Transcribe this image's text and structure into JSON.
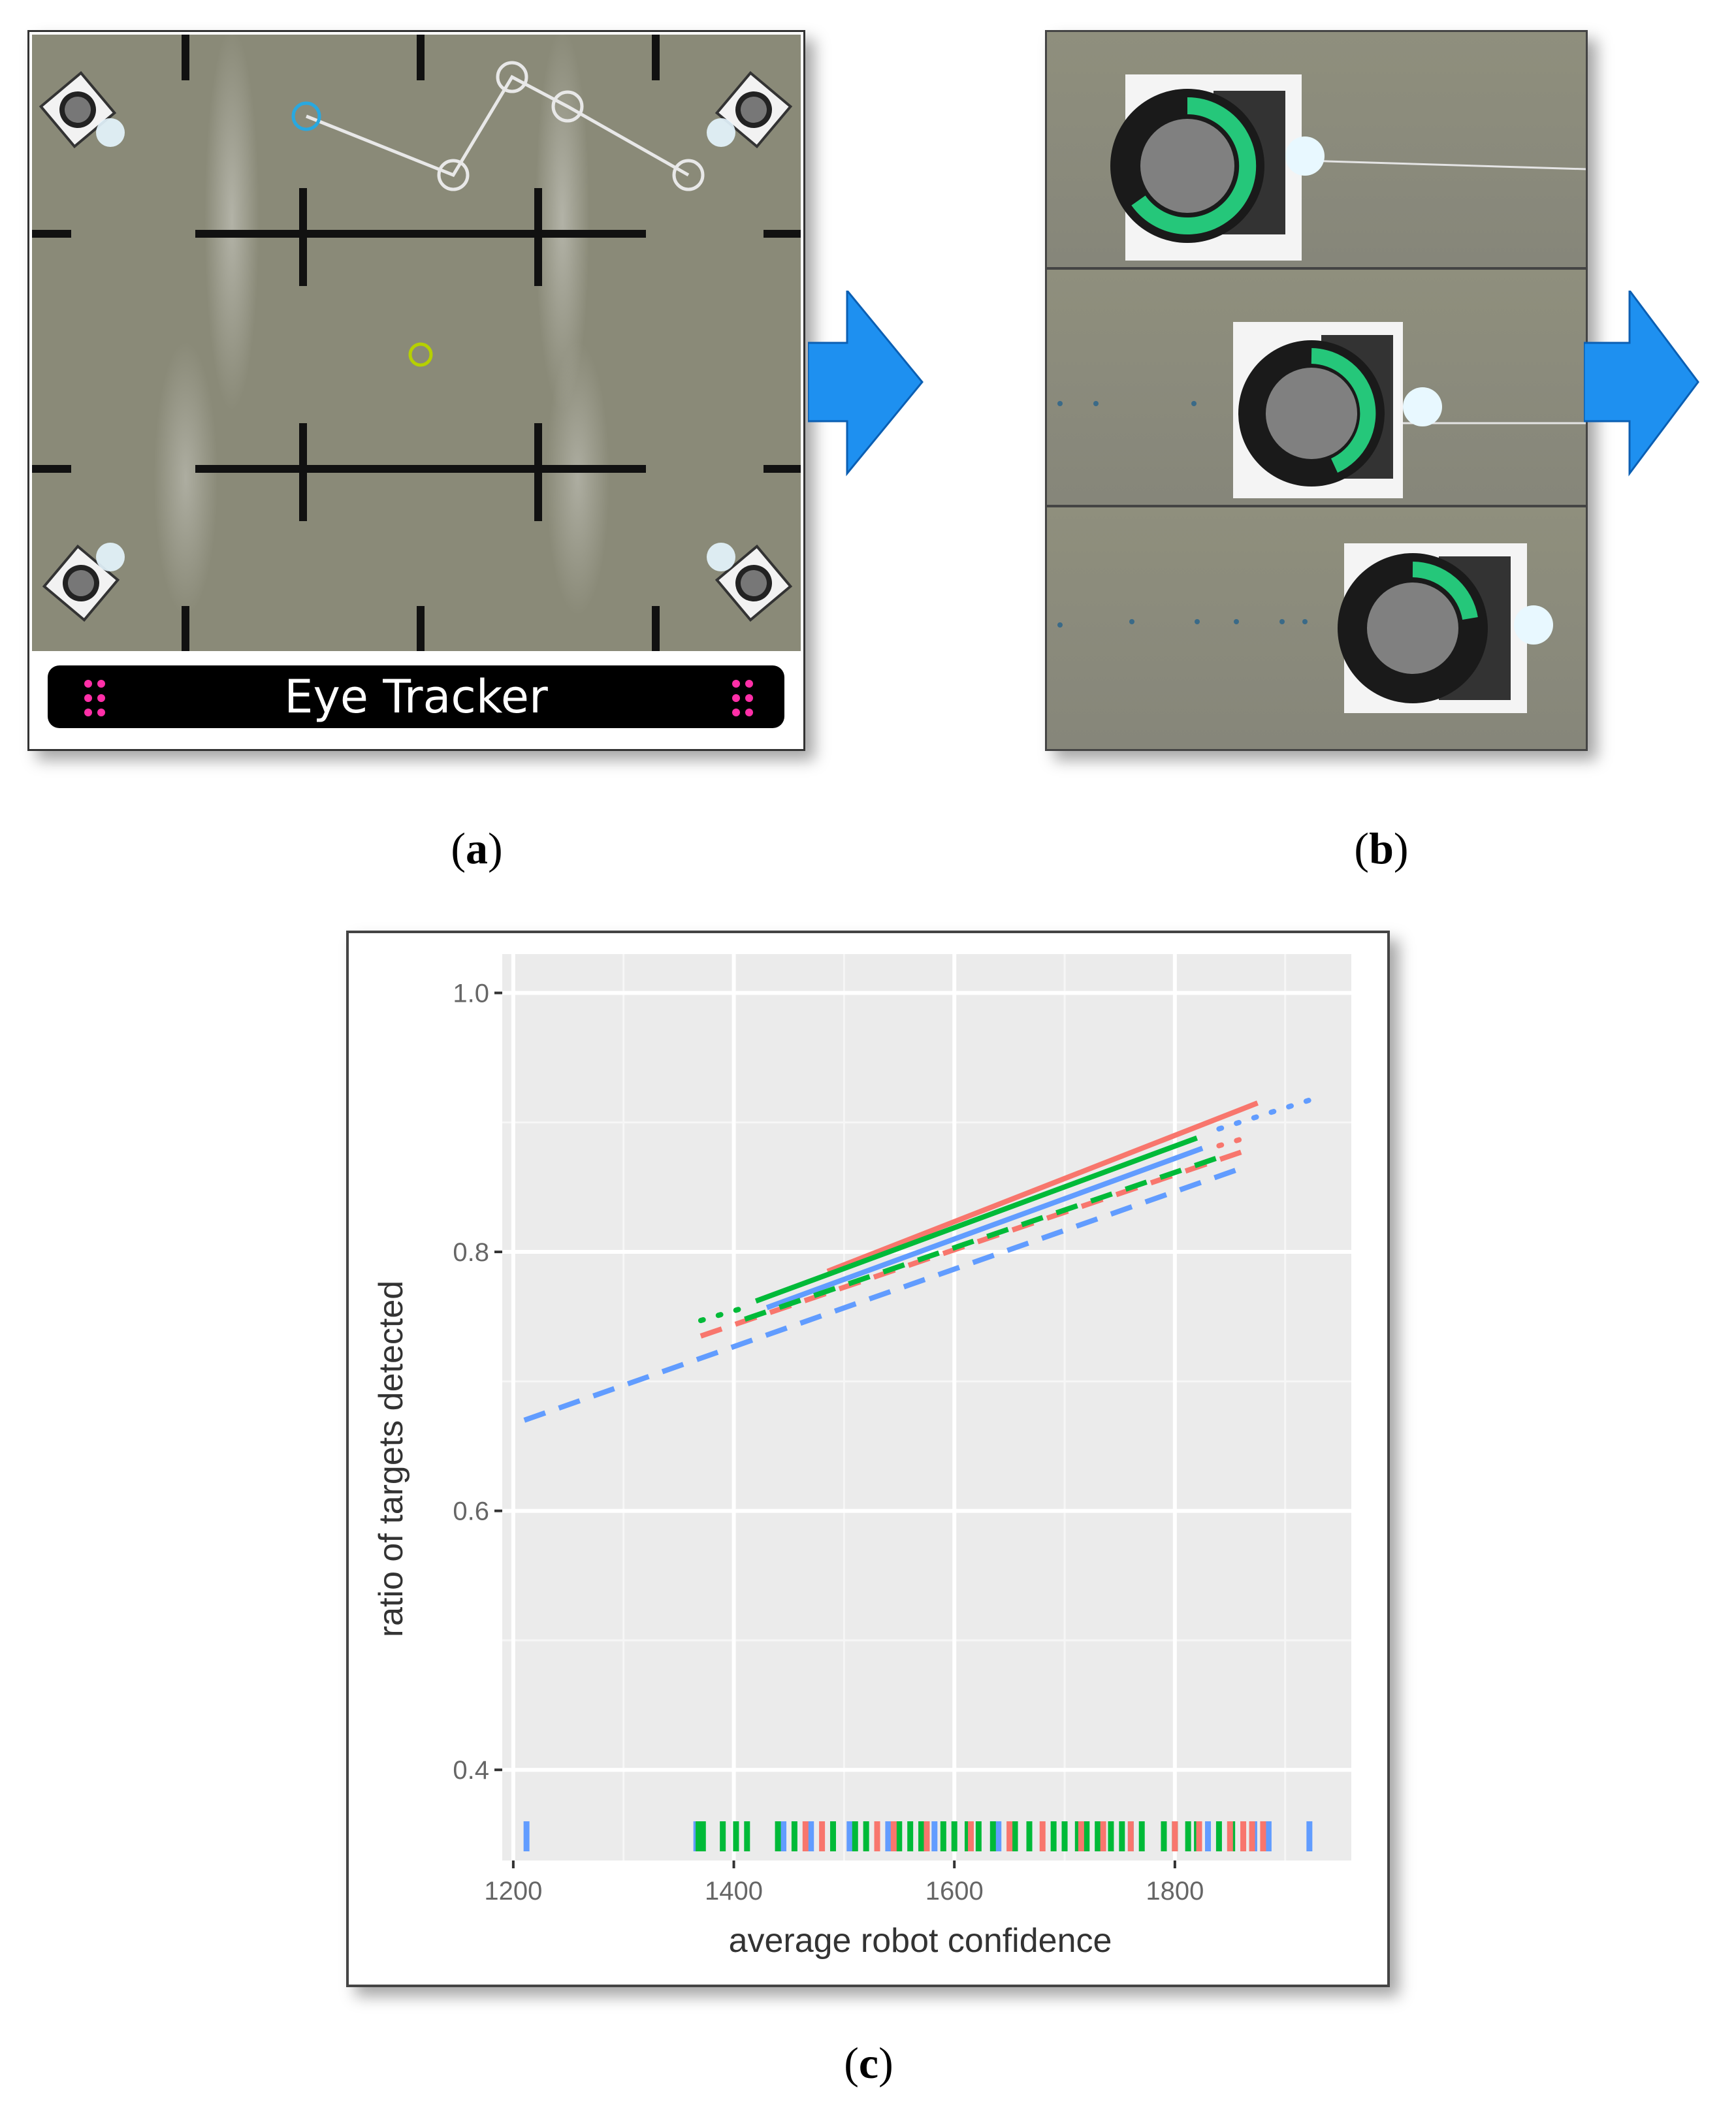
{
  "panel_a": {
    "caption_letter": "a",
    "tracker_label": "Eye Tracker"
  },
  "panel_b": {
    "caption_letter": "b"
  },
  "panel_c": {
    "caption_letter": "c"
  },
  "colors": {
    "arrow": "#1e90f0",
    "red": "#f8766d",
    "green": "#00ba38",
    "blue": "#619cff",
    "panel_bg": "#ebebeb",
    "eye_tracker_bg": "#000000",
    "eye_tracker_dots": "#ff2fa8"
  },
  "chart_data": {
    "type": "line",
    "title": "",
    "xlabel": "average robot confidence",
    "ylabel": "ratio of targets detected",
    "xlim": [
      1190,
      1960
    ],
    "ylim": [
      0.33,
      1.03
    ],
    "x_ticks": [
      1200,
      1400,
      1600,
      1800
    ],
    "y_ticks": [
      0.4,
      0.6,
      0.8,
      1.0
    ],
    "y_tick_labels": [
      "0.4",
      "0.6",
      "0.8",
      "1.0"
    ],
    "grid": true,
    "legend": "none",
    "series": [
      {
        "color": "#f8766d",
        "style": "solid",
        "x": [
          1485,
          1875
        ],
        "y": [
          0.785,
          0.915
        ]
      },
      {
        "color": "#00ba38",
        "style": "solid",
        "x": [
          1420,
          1820
        ],
        "y": [
          0.762,
          0.888
        ]
      },
      {
        "color": "#619cff",
        "style": "solid",
        "x": [
          1430,
          1825
        ],
        "y": [
          0.757,
          0.88
        ]
      },
      {
        "color": "#f8766d",
        "style": "dashed",
        "x": [
          1370,
          1860
        ],
        "y": [
          0.735,
          0.877
        ]
      },
      {
        "color": "#00ba38",
        "style": "dashed",
        "x": [
          1410,
          1840
        ],
        "y": [
          0.748,
          0.873
        ]
      },
      {
        "color": "#619cff",
        "style": "dashed",
        "x": [
          1210,
          1865
        ],
        "y": [
          0.67,
          0.866
        ]
      },
      {
        "color": "#00ba38",
        "style": "dotted",
        "x": [
          1370,
          1410
        ],
        "y": [
          0.747,
          0.757
        ]
      },
      {
        "color": "#619cff",
        "style": "dotted",
        "x": [
          1840,
          1925
        ],
        "y": [
          0.895,
          0.918
        ]
      },
      {
        "color": "#f8766d",
        "style": "dotted",
        "x": [
          1840,
          1860
        ],
        "y": [
          0.882,
          0.887
        ]
      }
    ],
    "rug": [
      {
        "color": "#619cff",
        "x": [
          1212,
          1366,
          1445,
          1470,
          1505,
          1540,
          1582,
          1640,
          1700,
          1760,
          1790,
          1830,
          1872,
          1885,
          1922
        ]
      },
      {
        "color": "#00ba38",
        "x": [
          1368,
          1372,
          1390,
          1402,
          1412,
          1440,
          1455,
          1490,
          1510,
          1520,
          1550,
          1560,
          1570,
          1590,
          1600,
          1612,
          1622,
          1635,
          1655,
          1668,
          1690,
          1700,
          1712,
          1720,
          1730,
          1742,
          1752,
          1770,
          1790,
          1800,
          1812,
          1820,
          1840,
          1852
        ]
      },
      {
        "color": "#f8766d",
        "x": [
          1465,
          1480,
          1530,
          1545,
          1575,
          1615,
          1650,
          1680,
          1715,
          1735,
          1760,
          1800,
          1822,
          1850,
          1862,
          1870,
          1880
        ]
      }
    ]
  }
}
